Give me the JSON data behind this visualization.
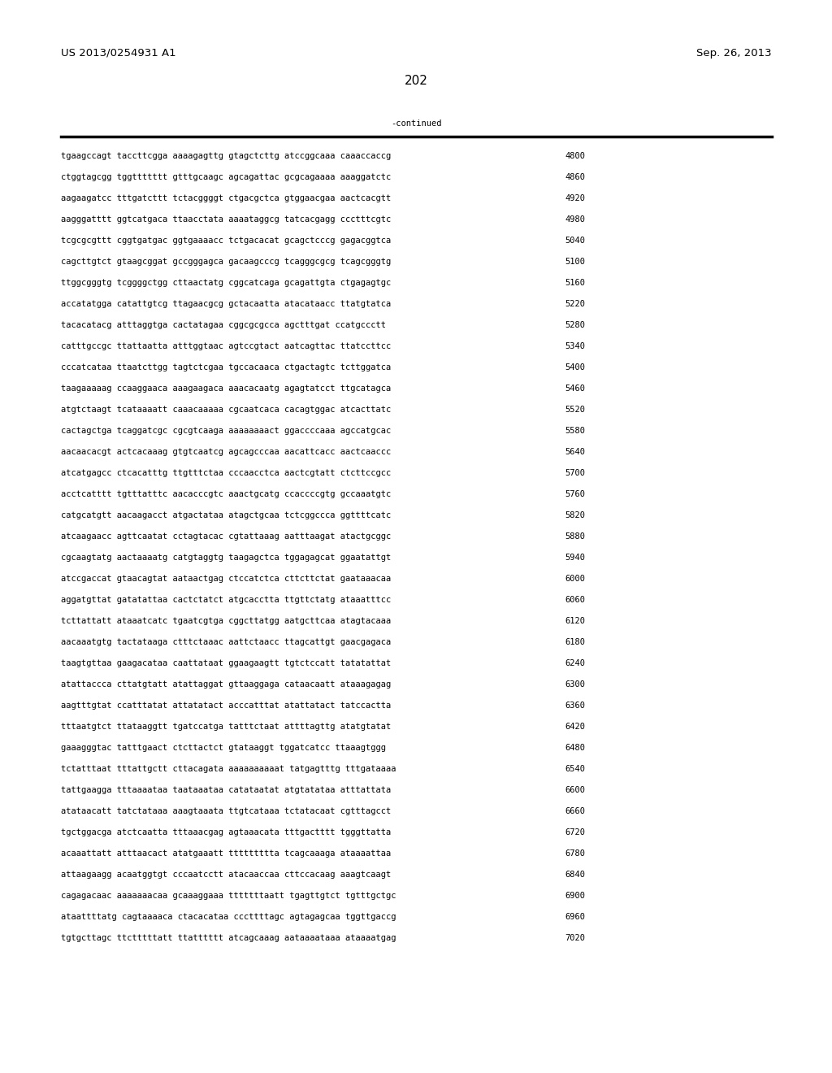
{
  "header_left": "US 2013/0254931 A1",
  "header_right": "Sep. 26, 2013",
  "page_number": "202",
  "continued_text": "-continued",
  "background_color": "#ffffff",
  "text_color": "#000000",
  "seq_font_size": 7.5,
  "header_font_size": 9.5,
  "page_num_font_size": 11,
  "sequence_lines": [
    [
      "tgaagccagt taccttcgga aaaagagttg gtagctcttg atccggcaaa caaaccaccg",
      "4800"
    ],
    [
      "ctggtagcgg tggttttttt gtttgcaagc agcagattac gcgcagaaaa aaaggatctc",
      "4860"
    ],
    [
      "aagaagatcc tttgatcttt tctacggggt ctgacgctca gtggaacgaa aactcacgtt",
      "4920"
    ],
    [
      "aagggatttt ggtcatgaca ttaacctata aaaataggcg tatcacgagg ccctttcgtc",
      "4980"
    ],
    [
      "tcgcgcgttt cggtgatgac ggtgaaaacc tctgacacat gcagctcccg gagacggtca",
      "5040"
    ],
    [
      "cagcttgtct gtaagcggat gccgggagca gacaagcccg tcagggcgcg tcagcgggtg",
      "5100"
    ],
    [
      "ttggcgggtg tcggggctgg cttaactatg cggcatcaga gcagattgta ctgagagtgc",
      "5160"
    ],
    [
      "accatatgga catattgtcg ttagaacgcg gctacaatta atacataacc ttatgtatca",
      "5220"
    ],
    [
      "tacacatacg atttaggtga cactatagaa cggcgcgcca agctttgat ccatgccctt",
      "5280"
    ],
    [
      "catttgccgc ttattaatta atttggtaac agtccgtact aatcagttac ttatccttcc",
      "5340"
    ],
    [
      "cccatcataa ttaatcttgg tagtctcgaa tgccacaaca ctgactagtc tcttggatca",
      "5400"
    ],
    [
      "taagaaaaag ccaaggaaca aaagaagaca aaacacaatg agagtatcct ttgcatagca",
      "5460"
    ],
    [
      "atgtctaagt tcataaaatt caaacaaaaa cgcaatcaca cacagtggac atcacttatc",
      "5520"
    ],
    [
      "cactagctga tcaggatcgc cgcgtcaaga aaaaaaaact ggaccccaaa agccatgcac",
      "5580"
    ],
    [
      "aacaacacgt actcacaaag gtgtcaatcg agcagcccaa aacattcacc aactcaaccc",
      "5640"
    ],
    [
      "atcatgagcc ctcacatttg ttgtttctaa cccaacctca aactcgtatt ctcttccgcc",
      "5700"
    ],
    [
      "acctcatttt tgtttatttc aacacccgtc aaactgcatg ccaccccgtg gccaaatgtc",
      "5760"
    ],
    [
      "catgcatgtt aacaagacct atgactataa atagctgcaa tctcggccca ggttttcatc",
      "5820"
    ],
    [
      "atcaagaacc agttcaatat cctagtacac cgtattaaag aatttaagat atactgcggc",
      "5880"
    ],
    [
      "cgcaagtatg aactaaaatg catgtaggtg taagagctca tggagagcat ggaatattgt",
      "5940"
    ],
    [
      "atccgaccat gtaacagtat aataactgag ctccatctca cttcttctat gaataaacaa",
      "6000"
    ],
    [
      "aggatgttat gatatattaa cactctatct atgcacctta ttgttctatg ataaatttcc",
      "6060"
    ],
    [
      "tcttattatt ataaatcatc tgaatcgtga cggcttatgg aatgcttcaa atagtacaaa",
      "6120"
    ],
    [
      "aacaaatgtg tactataaga ctttctaaac aattctaacc ttagcattgt gaacgagaca",
      "6180"
    ],
    [
      "taagtgttaa gaagacataa caattataat ggaagaagtt tgtctccatt tatatattat",
      "6240"
    ],
    [
      "atattaccca cttatgtatt atattaggat gttaaggaga cataacaatt ataaagagag",
      "6300"
    ],
    [
      "aagtttgtat ccatttatat attatatact acccatttat atattatact tatccactta",
      "6360"
    ],
    [
      "tttaatgtct ttataaggtt tgatccatga tatttctaat attttagttg atatgtatat",
      "6420"
    ],
    [
      "gaaagggtac tatttgaact ctcttactct gtataaggt tggatcatcc ttaaagtggg",
      "6480"
    ],
    [
      "tctatttaat tttattgctt cttacagata aaaaaaaaaat tatgagtttg tttgataaaa",
      "6540"
    ],
    [
      "tattgaagga tttaaaataa taataaataa catataatat atgtatataa atttattata",
      "6600"
    ],
    [
      "atataacatt tatctataaa aaagtaaata ttgtcataaa tctatacaat cgtttagcct",
      "6660"
    ],
    [
      "tgctggacga atctcaatta tttaaacgag agtaaacata tttgactttt tgggttatta",
      "6720"
    ],
    [
      "acaaattatt atttaacact atatgaaatt ttttttttta tcagcaaaga ataaaattaa",
      "6780"
    ],
    [
      "attaagaagg acaatggtgt cccaatcctt atacaaccaa cttccacaag aaagtcaagt",
      "6840"
    ],
    [
      "cagagacaac aaaaaaacaa gcaaaggaaa tttttttaatt tgagttgtct tgtttgctgc",
      "6900"
    ],
    [
      "ataattttatg cagtaaaaca ctacacataa cccttttagc agtagagcaa tggttgaccg",
      "6960"
    ],
    [
      "tgtgcttagc ttctttttatt ttatttttt atcagcaaag aataaaataaa ataaaatgag",
      "7020"
    ]
  ]
}
